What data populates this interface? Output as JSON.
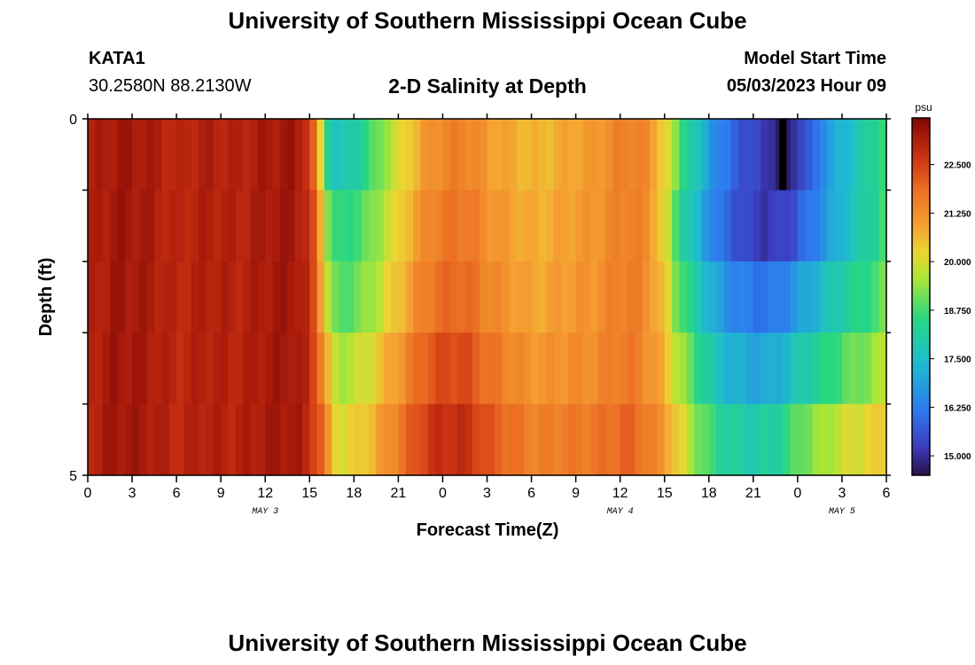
{
  "header": {
    "title": "University of Southern Mississippi Ocean Cube",
    "station_id": "KATA1",
    "coordinates": "30.2580N  88.2130W",
    "plot_title": "2-D Salinity at Depth",
    "model_start_label": "Model Start Time",
    "model_start_value": "05/03/2023 Hour 09"
  },
  "footer": {
    "title": "University of Southern Mississippi Ocean Cube"
  },
  "colors": {
    "background": "#ffffff",
    "axis": "#000000"
  },
  "chart_data": {
    "type": "heatmap",
    "title": "2-D Salinity at Depth",
    "xlabel": "Forecast Time(Z)",
    "ylabel": "Depth (ft)",
    "units": "psu",
    "x_hours_from_start": [
      0,
      54
    ],
    "x_tick_labels": [
      "0",
      "3",
      "6",
      "9",
      "12",
      "15",
      "18",
      "21",
      "0",
      "3",
      "6",
      "9",
      "12",
      "15",
      "18",
      "21",
      "0",
      "3",
      "6"
    ],
    "date_labels": [
      {
        "label": "MAY 3",
        "hour": 12
      },
      {
        "label": "MAY 4",
        "hour": 36
      },
      {
        "label": "MAY 5",
        "hour": 51
      }
    ],
    "y_tick_labels": [
      "0",
      "5"
    ],
    "ylim": [
      0,
      5
    ],
    "depth_bins": 5,
    "colorbar": {
      "range": [
        14.5,
        23.7
      ],
      "tick_values": [
        15.0,
        16.25,
        17.5,
        18.75,
        20.0,
        21.25,
        22.5
      ],
      "tick_labels": [
        "15.000",
        "16.250",
        "17.500",
        "18.750",
        "20.000",
        "21.250",
        "22.500"
      ]
    },
    "time_profile": [
      [
        0,
        23.0
      ],
      [
        2,
        23.3
      ],
      [
        4,
        23.2
      ],
      [
        6,
        22.9
      ],
      [
        8,
        23.1
      ],
      [
        10,
        23.0
      ],
      [
        12,
        23.2
      ],
      [
        14,
        23.3
      ],
      [
        15,
        22.8
      ],
      [
        15.5,
        22.2
      ],
      [
        16,
        21.2
      ],
      [
        16.5,
        19.8
      ],
      [
        17,
        19.5
      ],
      [
        18,
        19.6
      ],
      [
        19,
        19.8
      ],
      [
        20,
        20.3
      ],
      [
        21,
        20.8
      ],
      [
        22,
        21.4
      ],
      [
        23,
        21.9
      ],
      [
        24,
        22.1
      ],
      [
        25,
        22.2
      ],
      [
        26,
        22.0
      ],
      [
        27,
        21.6
      ],
      [
        28,
        21.4
      ],
      [
        29,
        21.2
      ],
      [
        30,
        21.0
      ],
      [
        31,
        21.0
      ],
      [
        32,
        21.1
      ],
      [
        33,
        21.2
      ],
      [
        34,
        21.2
      ],
      [
        35,
        21.4
      ],
      [
        36,
        21.6
      ],
      [
        37,
        21.6
      ],
      [
        38,
        21.2
      ],
      [
        39,
        20.2
      ],
      [
        40,
        18.7
      ],
      [
        41,
        17.8
      ],
      [
        42,
        17.0
      ],
      [
        43,
        16.4
      ],
      [
        44,
        16.1
      ],
      [
        45,
        15.9
      ],
      [
        46,
        15.9
      ],
      [
        47,
        16.1
      ],
      [
        48,
        16.6
      ],
      [
        49,
        17.0
      ],
      [
        50,
        17.4
      ],
      [
        51,
        17.8
      ],
      [
        52,
        18.1
      ],
      [
        53,
        18.4
      ],
      [
        54,
        18.8
      ]
    ],
    "depth_profile": [
      {
        "t": [
          0,
          15,
          16,
          20,
          38,
          40,
          48,
          54
        ],
        "d": [
          0.0,
          0.0,
          -2.2,
          -0.9,
          0.0,
          0.2,
          -1.0,
          0.0
        ]
      },
      {
        "t": [
          0,
          15,
          16,
          20,
          38,
          40,
          48,
          54
        ],
        "d": [
          0.0,
          0.0,
          -1.2,
          -0.6,
          0.0,
          -0.2,
          -0.9,
          0.0
        ]
      },
      {
        "t": [
          0,
          15,
          16,
          20,
          38,
          40,
          48,
          54
        ],
        "d": [
          0.0,
          0.0,
          -0.8,
          -0.3,
          0.0,
          0.3,
          0.2,
          0.3
        ]
      },
      {
        "t": [
          0,
          15,
          16,
          20,
          38,
          40,
          48,
          54
        ],
        "d": [
          0.0,
          0.0,
          0.0,
          0.3,
          0.0,
          0.9,
          1.2,
          0.9
        ]
      },
      {
        "t": [
          0,
          15,
          16,
          20,
          38,
          40,
          48,
          54
        ],
        "d": [
          0.0,
          0.0,
          0.5,
          0.8,
          0.3,
          1.5,
          2.4,
          1.7
        ]
      }
    ],
    "surface_minimum": {
      "hour": 47,
      "value": 14.5,
      "depth_bin": 0
    }
  }
}
